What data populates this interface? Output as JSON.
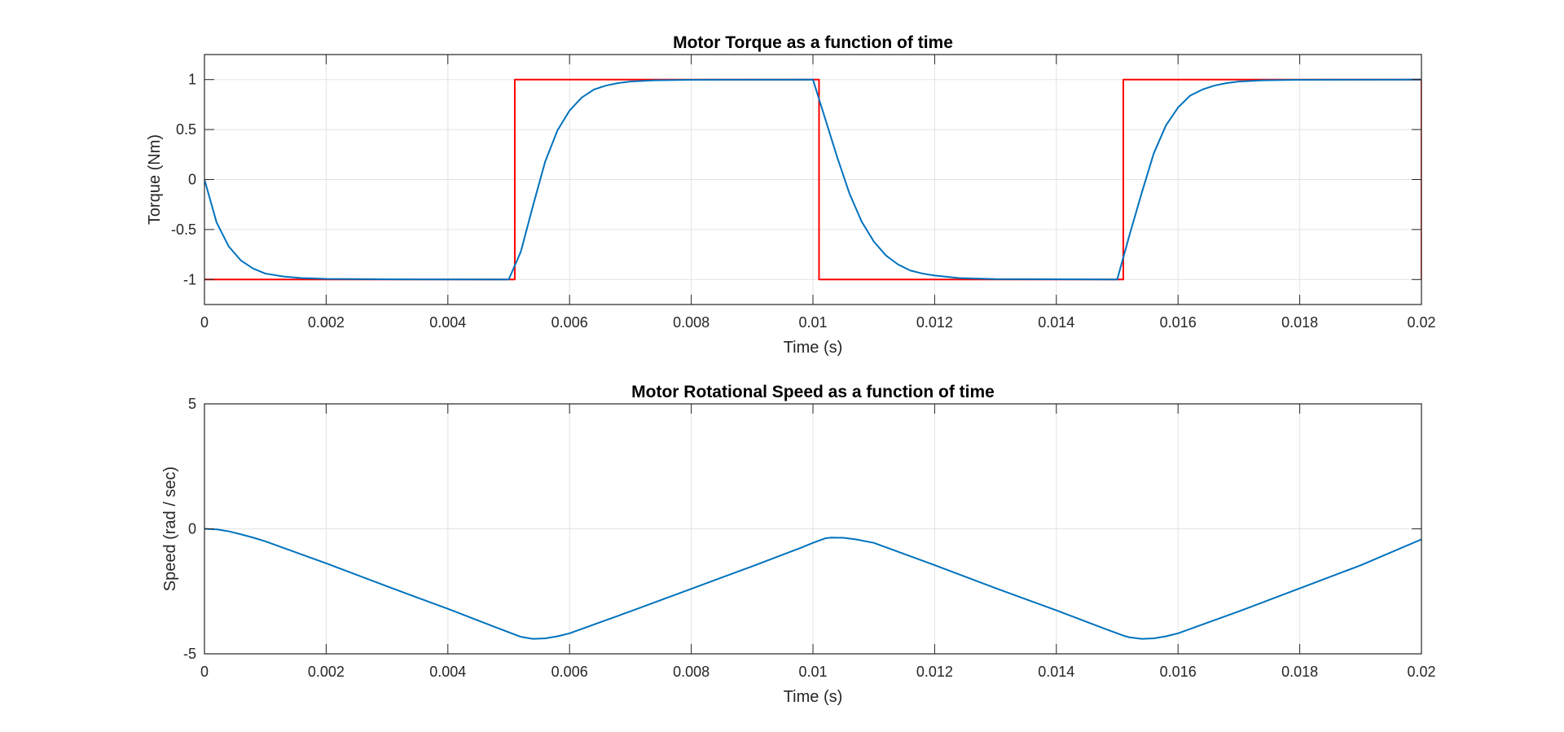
{
  "chart_data": [
    {
      "type": "line",
      "title": "Motor Torque as a function of time",
      "xlabel": "Time (s)",
      "ylabel": "Torque (Nm)",
      "xlim": [
        0,
        0.02
      ],
      "ylim": [
        -1.25,
        1.25
      ],
      "x_ticks": [
        0,
        0.002,
        0.004,
        0.006,
        0.008,
        0.01,
        0.012,
        0.014,
        0.016,
        0.018,
        0.02
      ],
      "x_tick_labels": [
        "0",
        "0.002",
        "0.004",
        "0.006",
        "0.008",
        "0.01",
        "0.012",
        "0.014",
        "0.016",
        "0.018",
        "0.02"
      ],
      "y_ticks": [
        -1,
        -0.5,
        0,
        0.5,
        1
      ],
      "y_tick_labels": [
        "-1",
        "-0.5",
        "0",
        "0.5",
        "1"
      ],
      "grid": true,
      "series": [
        {
          "color": "#ff0000",
          "points": [
            [
              0,
              -1
            ],
            [
              0.0051,
              -1
            ],
            [
              0.0051,
              1
            ],
            [
              0.0101,
              1
            ],
            [
              0.0101,
              -1
            ],
            [
              0.0151,
              -1
            ],
            [
              0.0151,
              1
            ],
            [
              0.02,
              1
            ],
            [
              0.02,
              -1
            ]
          ]
        },
        {
          "color": "#0072bd",
          "points": [
            [
              0,
              0
            ],
            [
              0.0002,
              -0.43
            ],
            [
              0.0004,
              -0.67
            ],
            [
              0.0006,
              -0.81
            ],
            [
              0.0008,
              -0.89
            ],
            [
              0.001,
              -0.94
            ],
            [
              0.0013,
              -0.97
            ],
            [
              0.0016,
              -0.985
            ],
            [
              0.002,
              -0.993
            ],
            [
              0.003,
              -0.998
            ],
            [
              0.005,
              -1
            ],
            [
              0.0052,
              -0.72
            ],
            [
              0.0054,
              -0.26
            ],
            [
              0.0056,
              0.18
            ],
            [
              0.0058,
              0.49
            ],
            [
              0.006,
              0.69
            ],
            [
              0.0062,
              0.82
            ],
            [
              0.0064,
              0.9
            ],
            [
              0.0066,
              0.94
            ],
            [
              0.0068,
              0.965
            ],
            [
              0.007,
              0.98
            ],
            [
              0.0074,
              0.992
            ],
            [
              0.008,
              0.998
            ],
            [
              0.01,
              1
            ],
            [
              0.0102,
              0.61
            ],
            [
              0.0104,
              0.22
            ],
            [
              0.0106,
              -0.14
            ],
            [
              0.0108,
              -0.42
            ],
            [
              0.011,
              -0.62
            ],
            [
              0.0112,
              -0.76
            ],
            [
              0.0114,
              -0.85
            ],
            [
              0.0116,
              -0.91
            ],
            [
              0.0118,
              -0.94
            ],
            [
              0.012,
              -0.96
            ],
            [
              0.0124,
              -0.985
            ],
            [
              0.013,
              -0.995
            ],
            [
              0.015,
              -1
            ],
            [
              0.0152,
              -0.56
            ],
            [
              0.0154,
              -0.14
            ],
            [
              0.0156,
              0.26
            ],
            [
              0.0158,
              0.54
            ],
            [
              0.016,
              0.72
            ],
            [
              0.0162,
              0.84
            ],
            [
              0.0164,
              0.9
            ],
            [
              0.0166,
              0.94
            ],
            [
              0.0168,
              0.965
            ],
            [
              0.017,
              0.98
            ],
            [
              0.0174,
              0.992
            ],
            [
              0.018,
              0.998
            ],
            [
              0.02,
              1
            ]
          ]
        }
      ]
    },
    {
      "type": "line",
      "title": "Motor Rotational Speed as a function of time",
      "xlabel": "Time (s)",
      "ylabel": "Speed (rad / sec)",
      "xlim": [
        0,
        0.02
      ],
      "ylim": [
        -5,
        5
      ],
      "x_ticks": [
        0,
        0.002,
        0.004,
        0.006,
        0.008,
        0.01,
        0.012,
        0.014,
        0.016,
        0.018,
        0.02
      ],
      "x_tick_labels": [
        "0",
        "0.002",
        "0.004",
        "0.006",
        "0.008",
        "0.01",
        "0.012",
        "0.014",
        "0.016",
        "0.018",
        "0.02"
      ],
      "y_ticks": [
        -5,
        0,
        5
      ],
      "y_tick_labels": [
        "-5",
        "0",
        "5"
      ],
      "grid": true,
      "series": [
        {
          "color": "#0072bd",
          "points": [
            [
              0,
              0
            ],
            [
              0.0002,
              -0.02
            ],
            [
              0.0004,
              -0.1
            ],
            [
              0.0006,
              -0.22
            ],
            [
              0.0008,
              -0.35
            ],
            [
              0.001,
              -0.5
            ],
            [
              0.002,
              -1.38
            ],
            [
              0.003,
              -2.3
            ],
            [
              0.004,
              -3.2
            ],
            [
              0.0048,
              -3.95
            ],
            [
              0.0051,
              -4.23
            ],
            [
              0.0052,
              -4.32
            ],
            [
              0.0054,
              -4.4
            ],
            [
              0.0056,
              -4.38
            ],
            [
              0.0058,
              -4.3
            ],
            [
              0.006,
              -4.18
            ],
            [
              0.007,
              -3.3
            ],
            [
              0.008,
              -2.4
            ],
            [
              0.009,
              -1.5
            ],
            [
              0.0098,
              -0.76
            ],
            [
              0.01,
              -0.56
            ],
            [
              0.0101,
              -0.47
            ],
            [
              0.0102,
              -0.38
            ],
            [
              0.0103,
              -0.35
            ],
            [
              0.0105,
              -0.36
            ],
            [
              0.0107,
              -0.42
            ],
            [
              0.011,
              -0.56
            ],
            [
              0.012,
              -1.45
            ],
            [
              0.013,
              -2.37
            ],
            [
              0.014,
              -3.26
            ],
            [
              0.0148,
              -4.0
            ],
            [
              0.0151,
              -4.27
            ],
            [
              0.0152,
              -4.34
            ],
            [
              0.0154,
              -4.4
            ],
            [
              0.0156,
              -4.38
            ],
            [
              0.0158,
              -4.3
            ],
            [
              0.016,
              -4.18
            ],
            [
              0.017,
              -3.3
            ],
            [
              0.018,
              -2.38
            ],
            [
              0.019,
              -1.46
            ],
            [
              0.02,
              -0.42
            ]
          ]
        }
      ]
    }
  ]
}
